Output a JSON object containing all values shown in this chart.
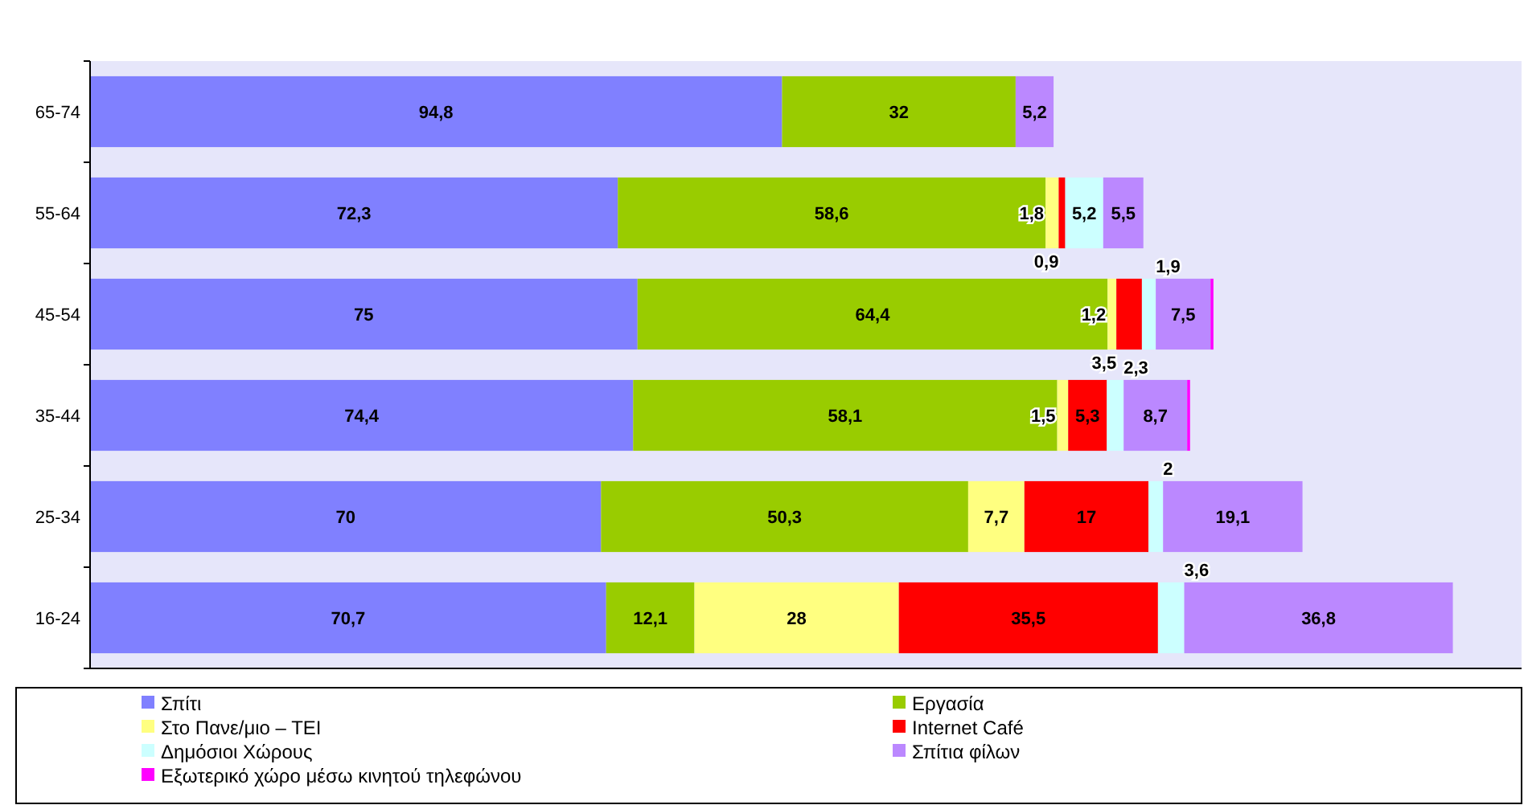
{
  "chart_data": {
    "type": "bar",
    "orientation": "horizontal",
    "stacked": true,
    "legend": "bottom",
    "categories": [
      "65-74",
      "55-64",
      "45-54",
      "35-44",
      "25-34",
      "16-24"
    ],
    "series": [
      {
        "name": "Σπίτι",
        "color": "#8080ff",
        "values": [
          94.8,
          72.3,
          75,
          74.4,
          70,
          70.7
        ],
        "value_labels": [
          "94,8",
          "72,3",
          "75",
          "74,4",
          "70",
          "70,7"
        ]
      },
      {
        "name": "Εργασία",
        "color": "#99cc00",
        "values": [
          32,
          58.6,
          64.4,
          58.1,
          50.3,
          12.1
        ],
        "value_labels": [
          "32",
          "58,6",
          "64,4",
          "58,1",
          "50,3",
          "12,1"
        ]
      },
      {
        "name": "Στο Πανε/μιο – ΤΕΙ",
        "color": "#ffff80",
        "values": [
          null,
          1.8,
          1.2,
          1.5,
          7.7,
          28
        ],
        "value_labels": [
          null,
          "1,8",
          "1,2",
          "1,5",
          "7,7",
          "28"
        ]
      },
      {
        "name": "Internet Café",
        "color": "#ff0000",
        "values": [
          null,
          0.9,
          3.5,
          5.3,
          17,
          35.5
        ],
        "value_labels": [
          null,
          "0,9",
          "3,5",
          "5,3",
          "17",
          "35,5"
        ]
      },
      {
        "name": "Δημόσιοι Χώρους",
        "color": "#ccffff",
        "values": [
          null,
          5.2,
          1.9,
          2.3,
          2,
          3.6
        ],
        "value_labels": [
          null,
          "5,2",
          "1,9",
          "2,3",
          "2",
          "3,6"
        ]
      },
      {
        "name": "Σπίτια φίλων",
        "color": "#bb88ff",
        "values": [
          5.2,
          5.5,
          7.5,
          8.7,
          19.1,
          36.8
        ],
        "value_labels": [
          "5,2",
          "5,5",
          "7,5",
          "8,7",
          "19,1",
          "36,8"
        ]
      },
      {
        "name": "Εξωτερικό χώρο μέσω κινητού  τηλεφώνου",
        "color": "#ff00ff",
        "values": [
          null,
          null,
          0.4,
          0.4,
          null,
          null
        ],
        "value_labels": [
          null,
          null,
          null,
          null,
          null,
          null
        ]
      }
    ]
  }
}
